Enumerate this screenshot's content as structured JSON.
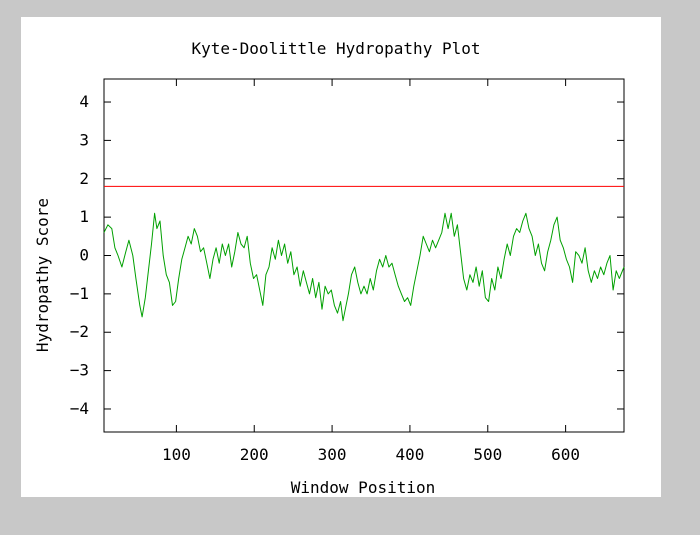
{
  "chart_data": {
    "type": "line",
    "title": "Kyte-Doolittle Hydropathy Plot",
    "xlabel": "Window Position",
    "ylabel": "Hydropathy Score",
    "xlim": [
      7,
      675
    ],
    "ylim": [
      -4.6,
      4.6
    ],
    "x_ticks": [
      100,
      200,
      300,
      400,
      500,
      600
    ],
    "y_ticks": [
      -4,
      -3,
      -2,
      -1,
      0,
      1,
      2,
      3,
      4
    ],
    "x_tick_labels": [
      "100",
      "200",
      "300",
      "400",
      "500",
      "600"
    ],
    "y_tick_labels": [
      "−4",
      "−3",
      "−2",
      "−1",
      "0",
      "1",
      "2",
      "3",
      "4"
    ],
    "grid": false,
    "threshold": {
      "value": 1.8,
      "color": "#ff0000"
    },
    "series": [
      {
        "color": "#00a000",
        "points": [
          [
            7,
            0.6
          ],
          [
            12,
            0.8
          ],
          [
            17,
            0.7
          ],
          [
            21,
            0.2
          ],
          [
            25,
            0.0
          ],
          [
            30,
            -0.3
          ],
          [
            35,
            0.1
          ],
          [
            39,
            0.4
          ],
          [
            44,
            0.0
          ],
          [
            48,
            -0.6
          ],
          [
            53,
            -1.3
          ],
          [
            56,
            -1.6
          ],
          [
            60,
            -1.1
          ],
          [
            64,
            -0.4
          ],
          [
            68,
            0.3
          ],
          [
            72,
            1.1
          ],
          [
            75,
            0.7
          ],
          [
            79,
            0.9
          ],
          [
            83,
            0.0
          ],
          [
            87,
            -0.5
          ],
          [
            91,
            -0.7
          ],
          [
            95,
            -1.3
          ],
          [
            99,
            -1.2
          ],
          [
            103,
            -0.6
          ],
          [
            107,
            -0.1
          ],
          [
            111,
            0.2
          ],
          [
            115,
            0.5
          ],
          [
            119,
            0.3
          ],
          [
            123,
            0.7
          ],
          [
            127,
            0.5
          ],
          [
            131,
            0.1
          ],
          [
            135,
            0.2
          ],
          [
            139,
            -0.2
          ],
          [
            143,
            -0.6
          ],
          [
            147,
            -0.1
          ],
          [
            151,
            0.2
          ],
          [
            155,
            -0.2
          ],
          [
            159,
            0.3
          ],
          [
            163,
            0.0
          ],
          [
            167,
            0.3
          ],
          [
            171,
            -0.3
          ],
          [
            175,
            0.1
          ],
          [
            179,
            0.6
          ],
          [
            183,
            0.3
          ],
          [
            187,
            0.2
          ],
          [
            191,
            0.5
          ],
          [
            195,
            -0.2
          ],
          [
            199,
            -0.6
          ],
          [
            203,
            -0.5
          ],
          [
            207,
            -0.9
          ],
          [
            211,
            -1.3
          ],
          [
            215,
            -0.5
          ],
          [
            219,
            -0.3
          ],
          [
            223,
            0.2
          ],
          [
            227,
            -0.1
          ],
          [
            231,
            0.4
          ],
          [
            235,
            0.0
          ],
          [
            239,
            0.3
          ],
          [
            243,
            -0.2
          ],
          [
            247,
            0.1
          ],
          [
            251,
            -0.5
          ],
          [
            255,
            -0.3
          ],
          [
            259,
            -0.8
          ],
          [
            263,
            -0.4
          ],
          [
            267,
            -0.7
          ],
          [
            271,
            -1.0
          ],
          [
            275,
            -0.6
          ],
          [
            279,
            -1.1
          ],
          [
            283,
            -0.7
          ],
          [
            287,
            -1.4
          ],
          [
            291,
            -0.8
          ],
          [
            295,
            -1.0
          ],
          [
            299,
            -0.9
          ],
          [
            303,
            -1.3
          ],
          [
            307,
            -1.5
          ],
          [
            311,
            -1.2
          ],
          [
            314,
            -1.7
          ],
          [
            317,
            -1.4
          ],
          [
            321,
            -1.0
          ],
          [
            325,
            -0.5
          ],
          [
            329,
            -0.3
          ],
          [
            333,
            -0.7
          ],
          [
            337,
            -1.0
          ],
          [
            341,
            -0.8
          ],
          [
            345,
            -1.0
          ],
          [
            349,
            -0.6
          ],
          [
            353,
            -0.9
          ],
          [
            357,
            -0.4
          ],
          [
            361,
            -0.1
          ],
          [
            365,
            -0.3
          ],
          [
            369,
            0.0
          ],
          [
            373,
            -0.3
          ],
          [
            377,
            -0.2
          ],
          [
            381,
            -0.5
          ],
          [
            385,
            -0.8
          ],
          [
            389,
            -1.0
          ],
          [
            393,
            -1.2
          ],
          [
            397,
            -1.1
          ],
          [
            401,
            -1.3
          ],
          [
            405,
            -0.8
          ],
          [
            409,
            -0.4
          ],
          [
            413,
            0.0
          ],
          [
            417,
            0.5
          ],
          [
            421,
            0.3
          ],
          [
            425,
            0.1
          ],
          [
            429,
            0.4
          ],
          [
            433,
            0.2
          ],
          [
            437,
            0.4
          ],
          [
            441,
            0.6
          ],
          [
            445,
            1.1
          ],
          [
            449,
            0.7
          ],
          [
            453,
            1.1
          ],
          [
            457,
            0.5
          ],
          [
            461,
            0.8
          ],
          [
            465,
            0.1
          ],
          [
            469,
            -0.6
          ],
          [
            473,
            -0.9
          ],
          [
            477,
            -0.5
          ],
          [
            481,
            -0.7
          ],
          [
            485,
            -0.3
          ],
          [
            489,
            -0.8
          ],
          [
            493,
            -0.4
          ],
          [
            497,
            -1.1
          ],
          [
            501,
            -1.2
          ],
          [
            505,
            -0.6
          ],
          [
            509,
            -0.9
          ],
          [
            513,
            -0.3
          ],
          [
            517,
            -0.6
          ],
          [
            521,
            -0.1
          ],
          [
            525,
            0.3
          ],
          [
            529,
            0.0
          ],
          [
            533,
            0.5
          ],
          [
            537,
            0.7
          ],
          [
            541,
            0.6
          ],
          [
            545,
            0.9
          ],
          [
            549,
            1.1
          ],
          [
            553,
            0.7
          ],
          [
            557,
            0.5
          ],
          [
            561,
            0.0
          ],
          [
            565,
            0.3
          ],
          [
            569,
            -0.2
          ],
          [
            573,
            -0.4
          ],
          [
            577,
            0.1
          ],
          [
            581,
            0.4
          ],
          [
            585,
            0.8
          ],
          [
            589,
            1.0
          ],
          [
            593,
            0.4
          ],
          [
            597,
            0.2
          ],
          [
            601,
            -0.1
          ],
          [
            605,
            -0.3
          ],
          [
            609,
            -0.7
          ],
          [
            613,
            0.1
          ],
          [
            617,
            0.0
          ],
          [
            621,
            -0.2
          ],
          [
            625,
            0.2
          ],
          [
            629,
            -0.4
          ],
          [
            633,
            -0.7
          ],
          [
            637,
            -0.4
          ],
          [
            641,
            -0.6
          ],
          [
            645,
            -0.3
          ],
          [
            649,
            -0.5
          ],
          [
            653,
            -0.2
          ],
          [
            657,
            0.0
          ],
          [
            661,
            -0.9
          ],
          [
            665,
            -0.4
          ],
          [
            669,
            -0.6
          ],
          [
            675,
            -0.3
          ]
        ]
      }
    ]
  }
}
